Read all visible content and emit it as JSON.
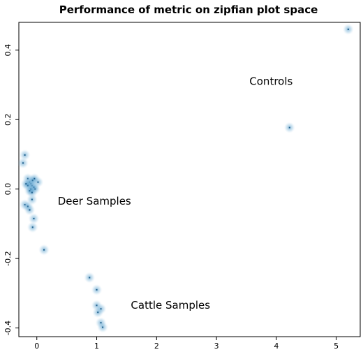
{
  "chart_data": {
    "type": "scatter",
    "title": "Performance of metric on zipfian plot space",
    "xlabel": "",
    "ylabel": "",
    "xlim": [
      -0.3,
      5.4
    ],
    "ylim": [
      -0.425,
      0.48
    ],
    "x_ticks": [
      0,
      1,
      2,
      3,
      4,
      5
    ],
    "x_tick_labels": [
      "0",
      "1",
      "2",
      "3",
      "4",
      "5"
    ],
    "y_ticks": [
      -0.4,
      -0.2,
      0.0,
      0.2,
      0.4
    ],
    "y_tick_labels": [
      "-0.4",
      "-0.2",
      "0.0",
      "0.2",
      "0.4"
    ],
    "grid": false,
    "point_color": "#2c7fb8",
    "annotations": [
      {
        "text": "Controls",
        "x": 3.55,
        "y": 0.3
      },
      {
        "text": "Deer Samples",
        "x": 0.35,
        "y": -0.045
      },
      {
        "text": "Cattle Samples",
        "x": 1.57,
        "y": -0.345
      }
    ],
    "points": [
      {
        "x": 5.2,
        "y": 0.46
      },
      {
        "x": 4.22,
        "y": 0.177
      },
      {
        "x": -0.2,
        "y": 0.098
      },
      {
        "x": -0.23,
        "y": 0.075
      },
      {
        "x": -0.15,
        "y": 0.03
      },
      {
        "x": -0.12,
        "y": 0.02
      },
      {
        "x": -0.1,
        "y": 0.015
      },
      {
        "x": -0.08,
        "y": 0.01
      },
      {
        "x": -0.05,
        "y": 0.005
      },
      {
        "x": -0.03,
        "y": 0.0
      },
      {
        "x": -0.1,
        "y": 0.0
      },
      {
        "x": -0.15,
        "y": 0.01
      },
      {
        "x": -0.07,
        "y": 0.025
      },
      {
        "x": -0.12,
        "y": -0.005
      },
      {
        "x": 0.02,
        "y": 0.02
      },
      {
        "x": -0.04,
        "y": 0.03
      },
      {
        "x": -0.18,
        "y": 0.015
      },
      {
        "x": -0.08,
        "y": -0.01
      },
      {
        "x": -0.2,
        "y": -0.045
      },
      {
        "x": -0.15,
        "y": -0.05
      },
      {
        "x": -0.12,
        "y": -0.06
      },
      {
        "x": -0.08,
        "y": -0.03
      },
      {
        "x": -0.05,
        "y": -0.085
      },
      {
        "x": -0.07,
        "y": -0.11
      },
      {
        "x": 0.12,
        "y": -0.175
      },
      {
        "x": 0.88,
        "y": -0.255
      },
      {
        "x": 1.0,
        "y": -0.29
      },
      {
        "x": 1.0,
        "y": -0.335
      },
      {
        "x": 1.07,
        "y": -0.345
      },
      {
        "x": 1.02,
        "y": -0.355
      },
      {
        "x": 1.07,
        "y": -0.385
      },
      {
        "x": 1.1,
        "y": -0.398
      }
    ]
  }
}
